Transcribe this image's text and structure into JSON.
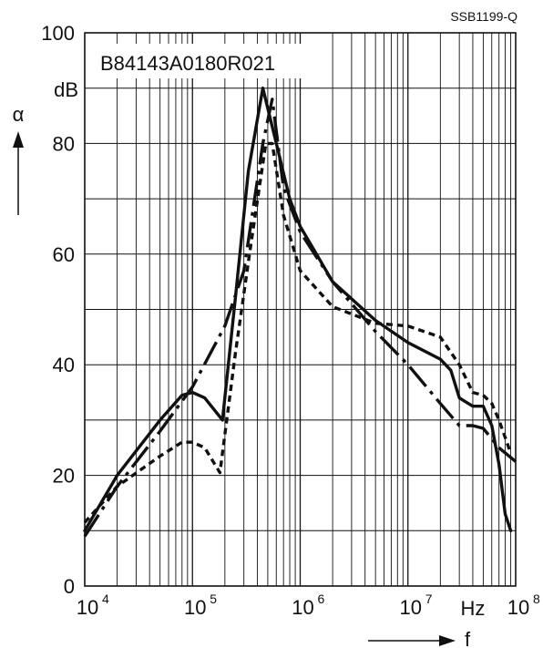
{
  "chart_data": {
    "type": "line",
    "title": "B84143A0180R021",
    "figure_id": "SSB1199-Q",
    "x_scale": "log",
    "xlim": [
      10000,
      100000000
    ],
    "ylim": [
      0,
      100
    ],
    "grid": true,
    "xlabel": "f",
    "ylabel": "α",
    "x_unit": "Hz",
    "y_unit": "dB",
    "x_ticks": [
      {
        "base": "10",
        "exp": "4",
        "value": 10000
      },
      {
        "base": "10",
        "exp": "5",
        "value": 100000
      },
      {
        "base": "10",
        "exp": "6",
        "value": 1000000
      },
      {
        "base": "10",
        "exp": "7",
        "value": 10000000
      },
      {
        "base": "10",
        "exp": "8",
        "value": 100000000
      }
    ],
    "y_ticks": [
      "0",
      "20",
      "40",
      "60",
      "80",
      "100"
    ],
    "series": [
      {
        "style": "solid",
        "points": [
          [
            10000,
            10
          ],
          [
            20000,
            20
          ],
          [
            50000,
            30
          ],
          [
            80000,
            34.5
          ],
          [
            100000,
            35
          ],
          [
            130000,
            34
          ],
          [
            190000,
            30
          ],
          [
            250000,
            52
          ],
          [
            330000,
            75
          ],
          [
            450000,
            90
          ],
          [
            600000,
            80
          ],
          [
            800000,
            70
          ],
          [
            1000000,
            65
          ],
          [
            2000000,
            55
          ],
          [
            5000000,
            48
          ],
          [
            10000000,
            44
          ],
          [
            20000000,
            41
          ],
          [
            25000000,
            39
          ],
          [
            30000000,
            34
          ],
          [
            40000000,
            32.5
          ],
          [
            50000000,
            32.5
          ],
          [
            60000000,
            29
          ],
          [
            70000000,
            22
          ],
          [
            80000000,
            13
          ],
          [
            90000000,
            10
          ]
        ]
      },
      {
        "style": "dashed",
        "points": [
          [
            10000,
            11.5
          ],
          [
            20000,
            18
          ],
          [
            50000,
            23.5
          ],
          [
            80000,
            26
          ],
          [
            100000,
            26
          ],
          [
            130000,
            25
          ],
          [
            180000,
            20.5
          ],
          [
            250000,
            42
          ],
          [
            350000,
            62
          ],
          [
            480000,
            80
          ],
          [
            550000,
            80
          ],
          [
            700000,
            67
          ],
          [
            1000000,
            57
          ],
          [
            2000000,
            50.5
          ],
          [
            5000000,
            47.5
          ],
          [
            10000000,
            47
          ],
          [
            20000000,
            45
          ],
          [
            30000000,
            40
          ],
          [
            40000000,
            35
          ],
          [
            50000000,
            34.5
          ],
          [
            60000000,
            33
          ],
          [
            70000000,
            30
          ],
          [
            90000000,
            24
          ]
        ]
      },
      {
        "style": "dash-dot",
        "points": [
          [
            10000,
            9
          ],
          [
            20000,
            18
          ],
          [
            50000,
            28
          ],
          [
            100000,
            36
          ],
          [
            200000,
            47
          ],
          [
            300000,
            57
          ],
          [
            450000,
            80
          ],
          [
            550000,
            88
          ],
          [
            700000,
            72
          ],
          [
            1000000,
            64
          ],
          [
            2000000,
            55
          ],
          [
            5000000,
            46
          ],
          [
            10000000,
            40
          ],
          [
            20000000,
            33
          ],
          [
            30000000,
            29
          ],
          [
            40000000,
            29
          ],
          [
            50000000,
            28.5
          ],
          [
            70000000,
            25
          ],
          [
            100000000,
            22.5
          ]
        ]
      }
    ]
  }
}
